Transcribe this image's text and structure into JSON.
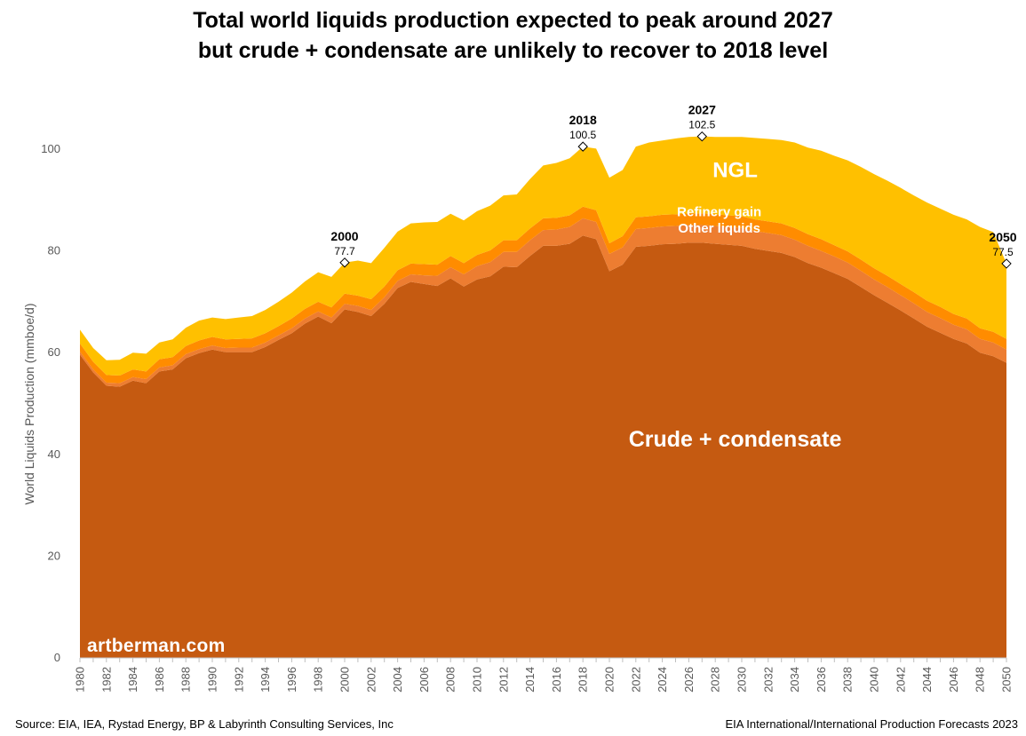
{
  "title_line1": "Total world liquids production expected to peak around 2027",
  "title_line2": "but crude + condensate are unlikely to recover to 2018 level",
  "source": "Source: EIA, IEA, Rystad Energy, BP &  Labyrinth Consulting Services, Inc",
  "forecast": "EIA International/International Production Forecasts 2023",
  "watermark": "artberman.com",
  "colors": {
    "crude": "#C55A11",
    "other_liquids": "#ED7D31",
    "refinery_gain": "#FF8C00",
    "ngl": "#FFC000"
  },
  "chart_data": {
    "type": "area",
    "stacked": true,
    "ylabel": "World Liquids Production (mmboe/d)",
    "xlabel": "",
    "ylim": [
      0,
      100
    ],
    "yticks": [
      0,
      20,
      40,
      60,
      80,
      100
    ],
    "xticks": [
      1980,
      1982,
      1984,
      1986,
      1988,
      1990,
      1992,
      1994,
      1996,
      1998,
      2000,
      2002,
      2004,
      2006,
      2008,
      2010,
      2012,
      2014,
      2016,
      2018,
      2020,
      2022,
      2024,
      2026,
      2028,
      2030,
      2032,
      2034,
      2036,
      2038,
      2040,
      2042,
      2044,
      2046,
      2048,
      2050
    ],
    "x": [
      1980,
      1981,
      1982,
      1983,
      1984,
      1985,
      1986,
      1987,
      1988,
      1989,
      1990,
      1991,
      1992,
      1993,
      1994,
      1995,
      1996,
      1997,
      1998,
      1999,
      2000,
      2001,
      2002,
      2003,
      2004,
      2005,
      2006,
      2007,
      2008,
      2009,
      2010,
      2011,
      2012,
      2013,
      2014,
      2015,
      2016,
      2017,
      2018,
      2019,
      2020,
      2021,
      2022,
      2023,
      2024,
      2025,
      2026,
      2027,
      2028,
      2029,
      2030,
      2031,
      2032,
      2033,
      2034,
      2035,
      2036,
      2037,
      2038,
      2039,
      2040,
      2041,
      2042,
      2043,
      2044,
      2045,
      2046,
      2047,
      2048,
      2049,
      2050
    ],
    "series": [
      {
        "name": "Crude + condensate",
        "values": [
          59.6,
          56.1,
          53.5,
          53.3,
          54.5,
          54.0,
          56.3,
          56.7,
          58.9,
          59.9,
          60.6,
          60.1,
          60.1,
          60.1,
          61.1,
          62.5,
          63.8,
          65.7,
          67.1,
          65.8,
          68.5,
          68.0,
          67.2,
          69.6,
          72.7,
          73.9,
          73.5,
          73.1,
          74.6,
          73.0,
          74.4,
          75.0,
          76.9,
          76.8,
          79.0,
          81.0,
          81.0,
          81.4,
          83.0,
          82.3,
          76.0,
          77.3,
          80.8,
          81.0,
          81.3,
          81.4,
          81.6,
          81.6,
          81.4,
          81.2,
          81.0,
          80.4,
          80.0,
          79.6,
          78.8,
          77.6,
          76.7,
          75.6,
          74.5,
          72.9,
          71.3,
          69.8,
          68.3,
          66.7,
          65.1,
          63.9,
          62.7,
          61.8,
          60.0,
          59.3,
          58.0
        ]
      },
      {
        "name": "Other liquids",
        "values": [
          0.6,
          0.6,
          0.6,
          0.7,
          0.7,
          0.8,
          0.8,
          0.8,
          0.8,
          0.8,
          0.8,
          0.8,
          0.9,
          0.9,
          0.9,
          0.9,
          1.0,
          1.0,
          1.0,
          1.1,
          1.1,
          1.2,
          1.2,
          1.3,
          1.4,
          1.5,
          1.7,
          2.0,
          2.2,
          2.4,
          2.6,
          2.8,
          2.9,
          3.0,
          3.1,
          3.1,
          3.2,
          3.3,
          3.4,
          3.4,
          3.4,
          3.4,
          3.5,
          3.5,
          3.5,
          3.5,
          3.5,
          3.5,
          3.5,
          3.5,
          3.5,
          3.5,
          3.5,
          3.5,
          3.4,
          3.4,
          3.3,
          3.3,
          3.2,
          3.2,
          3.1,
          3.1,
          3.0,
          3.0,
          2.9,
          2.9,
          2.8,
          2.8,
          2.7,
          2.7,
          2.6
        ]
      },
      {
        "name": "Refinery gain",
        "values": [
          1.6,
          1.5,
          1.5,
          1.5,
          1.5,
          1.5,
          1.6,
          1.6,
          1.6,
          1.7,
          1.7,
          1.7,
          1.7,
          1.8,
          1.8,
          1.8,
          1.9,
          1.9,
          1.9,
          2.0,
          2.0,
          2.0,
          2.1,
          2.1,
          2.1,
          2.1,
          2.2,
          2.2,
          2.2,
          2.2,
          2.2,
          2.3,
          2.3,
          2.3,
          2.3,
          2.3,
          2.3,
          2.3,
          2.3,
          2.3,
          2.1,
          2.2,
          2.3,
          2.3,
          2.3,
          2.3,
          2.3,
          2.3,
          2.3,
          2.3,
          2.3,
          2.3,
          2.3,
          2.3,
          2.3,
          2.3,
          2.3,
          2.2,
          2.2,
          2.2,
          2.2,
          2.2,
          2.2,
          2.2,
          2.2,
          2.2,
          2.1,
          2.1,
          2.1,
          2.1,
          2.1
        ]
      },
      {
        "name": "NGL",
        "values": [
          2.7,
          2.7,
          2.9,
          3.1,
          3.3,
          3.5,
          3.3,
          3.5,
          3.6,
          3.9,
          3.8,
          4.0,
          4.2,
          4.4,
          4.6,
          4.8,
          5.1,
          5.4,
          5.8,
          6.0,
          6.1,
          6.9,
          7.1,
          7.6,
          7.6,
          7.9,
          8.2,
          8.4,
          8.3,
          8.4,
          8.6,
          8.8,
          8.8,
          9.0,
          9.7,
          10.4,
          10.8,
          11.2,
          11.8,
          12.1,
          12.9,
          13.0,
          13.9,
          14.5,
          14.6,
          14.9,
          15.0,
          15.1,
          15.2,
          15.4,
          15.6,
          16.0,
          16.2,
          16.4,
          16.8,
          17.0,
          17.4,
          17.6,
          17.9,
          18.2,
          18.5,
          18.7,
          18.9,
          19.0,
          19.3,
          19.3,
          19.5,
          19.5,
          19.9,
          19.6,
          14.8
        ]
      }
    ],
    "annotations": [
      {
        "year": 2000,
        "label": "2000",
        "value": "77.7",
        "y": 77.7
      },
      {
        "year": 2018,
        "label": "2018",
        "value": "100.5",
        "y": 100.5
      },
      {
        "year": 2027,
        "label": "2027",
        "value": "102.5",
        "y": 102.5
      },
      {
        "year": 2050,
        "label": "2050",
        "value": "77.5",
        "y": 77.5
      }
    ],
    "area_labels": [
      {
        "text": "NGL",
        "x": 2029.5,
        "y": 94.5,
        "size": 24,
        "color": "#ffffff"
      },
      {
        "text": "Refinery gain",
        "x": 2028.3,
        "y": 86.8,
        "size": 15,
        "color": "#ffffff"
      },
      {
        "text": "Other liquids",
        "x": 2028.3,
        "y": 83.6,
        "size": 15,
        "color": "#ffffff"
      },
      {
        "text": "Crude + condensate",
        "x": 2029.5,
        "y": 41.5,
        "size": 25,
        "color": "#ffffff"
      }
    ],
    "grid": false,
    "legend": "none"
  }
}
